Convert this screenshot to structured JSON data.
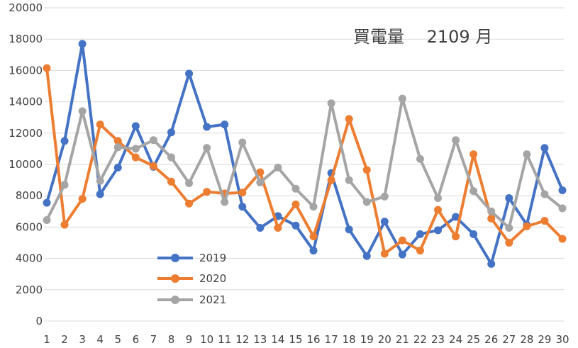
{
  "chart_data": {
    "type": "line",
    "title": "買電量　 2109 月",
    "xlabel": "",
    "ylabel": "",
    "ylim": [
      0,
      20000
    ],
    "yticks": [
      0,
      2000,
      4000,
      6000,
      8000,
      10000,
      12000,
      14000,
      16000,
      18000,
      20000
    ],
    "x": [
      1,
      2,
      3,
      4,
      5,
      6,
      7,
      8,
      9,
      10,
      11,
      12,
      13,
      14,
      15,
      16,
      17,
      18,
      19,
      20,
      21,
      22,
      23,
      24,
      25,
      26,
      27,
      28,
      29,
      30
    ],
    "grid": true,
    "legend_position": "bottom-left",
    "series": [
      {
        "name": "2019",
        "color": "#4472C4",
        "values": [
          7550,
          11500,
          17700,
          8100,
          9800,
          12450,
          9850,
          12050,
          15800,
          12400,
          12550,
          7300,
          5950,
          6700,
          6100,
          4500,
          9450,
          5850,
          4150,
          6350,
          4250,
          5550,
          5800,
          6650,
          5550,
          3650,
          7850,
          6150,
          11050,
          8350
        ]
      },
      {
        "name": "2020",
        "color": "#ED7D31",
        "values": [
          16150,
          6150,
          7800,
          12550,
          11500,
          10450,
          9900,
          8900,
          7500,
          8250,
          8150,
          8200,
          9500,
          5950,
          7450,
          5400,
          9000,
          12900,
          9650,
          4300,
          5150,
          4500,
          7100,
          5400,
          10650,
          6550,
          5000,
          6050,
          6400,
          5250
        ]
      },
      {
        "name": "2021",
        "color": "#A5A5A5",
        "values": [
          6450,
          8700,
          13400,
          8950,
          11100,
          11000,
          11550,
          10450,
          8800,
          11050,
          7600,
          11400,
          8850,
          9800,
          8450,
          7300,
          13900,
          9000,
          7600,
          7950,
          14200,
          10350,
          7850,
          11550,
          8300,
          7000,
          5950,
          10650,
          8100,
          7200
        ]
      }
    ]
  }
}
